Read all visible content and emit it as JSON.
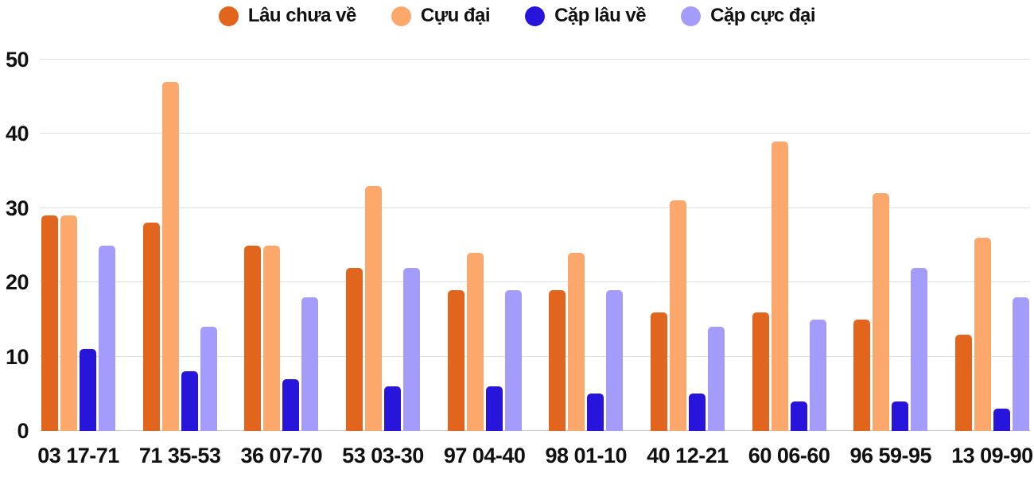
{
  "chart_data": {
    "type": "bar",
    "title": "",
    "xlabel": "",
    "ylabel": "",
    "ylim": [
      0,
      50
    ],
    "yticks": [
      0,
      10,
      20,
      30,
      40,
      50
    ],
    "grid": true,
    "legend_position": "top",
    "categories": [
      "03 17-71",
      "71 35-53",
      "36 07-70",
      "53 03-30",
      "97 04-40",
      "98 01-10",
      "40 12-21",
      "60 06-60",
      "96 59-95",
      "13 09-90"
    ],
    "series": [
      {
        "name": "Lâu chưa về",
        "color": "#e2651d",
        "values": [
          29,
          28,
          25,
          22,
          19,
          19,
          16,
          16,
          15,
          13
        ]
      },
      {
        "name": "Cựu đại",
        "color": "#fca76c",
        "values": [
          29,
          47,
          25,
          33,
          24,
          24,
          31,
          39,
          32,
          26
        ]
      },
      {
        "name": "Cặp lâu về",
        "color": "#2815dc",
        "values": [
          11,
          8,
          7,
          6,
          6,
          5,
          5,
          4,
          4,
          3
        ]
      },
      {
        "name": "Cặp cực đại",
        "color": "#a39cfa",
        "values": [
          25,
          14,
          18,
          22,
          19,
          19,
          14,
          15,
          22,
          18
        ]
      }
    ],
    "colors": {
      "text": "#111111",
      "gridline": "#dddddd",
      "baseline": "#cccccc",
      "background": "#ffffff"
    }
  }
}
